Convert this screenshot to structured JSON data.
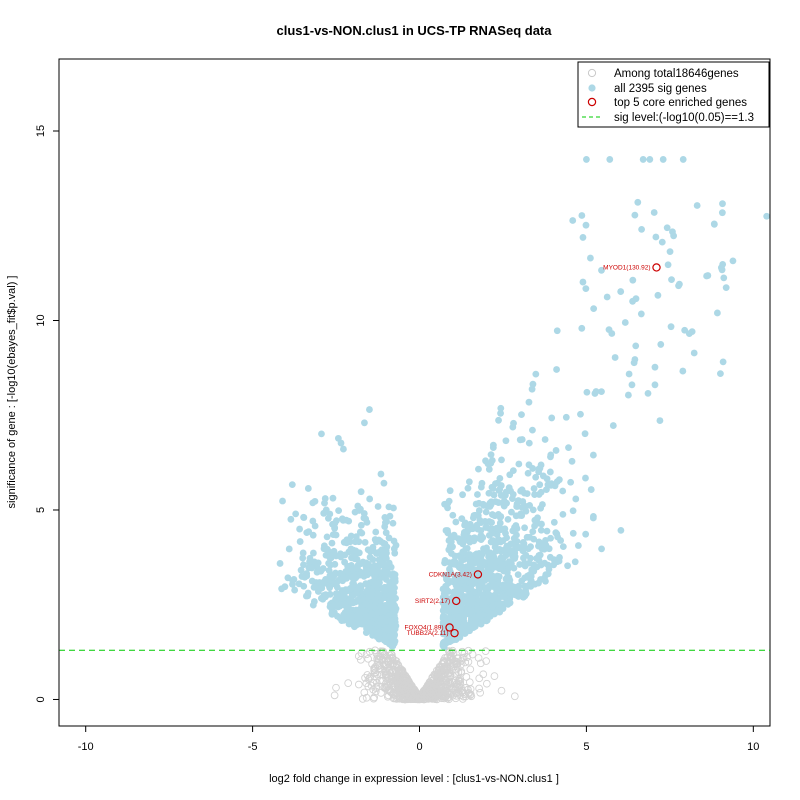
{
  "chart_data": {
    "type": "scatter",
    "title": "clus1-vs-NON.clus1 in UCS-TP RNASeq data",
    "xlabel": "log2 fold change in expression level : [clus1-vs-NON.clus1 ]",
    "ylabel": "significance of gene : [-log10(ebayes_fit$p.val) ]",
    "xlim": [
      -10.8,
      10.5
    ],
    "ylim": [
      -0.7,
      16.9
    ],
    "xticks": [
      -10,
      -5,
      0,
      5,
      10
    ],
    "yticks": [
      0,
      5,
      10,
      15
    ],
    "sig_level": 1.3,
    "colors": {
      "all_genes": "#d3d3d3",
      "sig_genes": "#add8e6",
      "core_genes": "#cc0000",
      "sig_line": "#00cc00"
    },
    "legend": {
      "position": "top-right",
      "entries": [
        "Among total18646genes",
        "all 2395 sig genes",
        "top 5 core enriched genes",
        "sig level:(-log10(0.05)==1.3"
      ]
    },
    "series": [
      {
        "name": "top 5 core enriched genes",
        "points": [
          {
            "label": "MYOD1(130.92)",
            "x": 7.1,
            "y": 11.4
          },
          {
            "label": "CDKN1A(3.42)",
            "x": 1.75,
            "y": 3.3
          },
          {
            "label": "SIRT2(2.17)",
            "x": 1.1,
            "y": 2.6
          },
          {
            "label": "FOXO4(1.89)",
            "x": 0.9,
            "y": 1.9
          },
          {
            "label": "TUBB2A(2.11)",
            "x": 1.05,
            "y": 1.75
          }
        ]
      }
    ],
    "background_series_note": "all genes / sig genes rendered from generated cloud"
  }
}
